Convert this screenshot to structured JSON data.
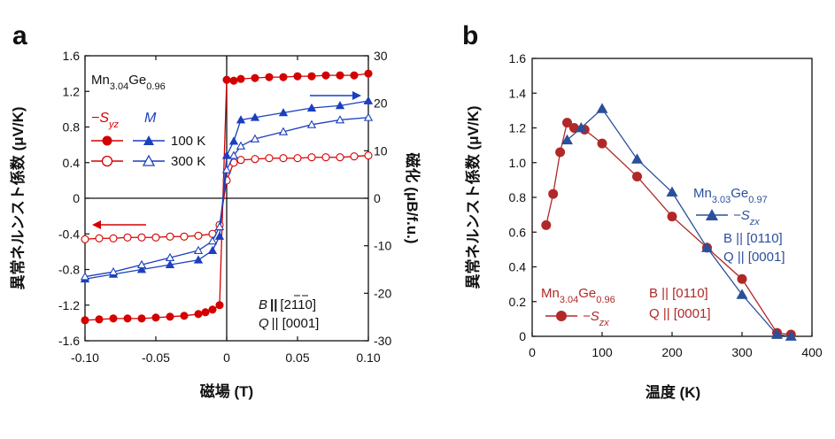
{
  "panel_a": {
    "label": "a",
    "sample": "Mn",
    "sample_sub1": "3.04",
    "sample_mid": "Ge",
    "sample_sub2": "0.96",
    "legend_syz": "−S",
    "legend_syz_sub": "yz",
    "legend_m": "M",
    "legend_100k": "100 K",
    "legend_300k": "300 K",
    "cond_b": "B",
    "cond_b_val": "|| [2̅1̅1̅0]",
    "cond_b_text": "[2110]",
    "cond_q": "Q",
    "cond_q_val": "|| [0001]",
    "ylabel_left": "異常ネルンスト係数 (μV/K)",
    "ylabel_right": "磁化 (μB/f.u.)",
    "xlabel": "磁場 (T)"
  },
  "panel_b": {
    "label": "b",
    "ylabel": "異常ネルンスト係数 (μV/K)",
    "xlabel": "温度 (K)",
    "blue_sample": "Mn",
    "blue_sub1": "3.03",
    "blue_mid": "Ge",
    "blue_sub2": "0.97",
    "blue_series": "−S",
    "blue_series_sub": "zx",
    "blue_b": "B || [0110]",
    "blue_q": "Q || [0001]",
    "red_sample": "Mn",
    "red_sub1": "3.04",
    "red_mid": "Ge",
    "red_sub2": "0.96",
    "red_series": "−S",
    "red_series_sub": "zx",
    "red_b": "B || [0110]",
    "red_q": "Q || [0001]"
  },
  "chart_data": [
    {
      "type": "line",
      "title": "a",
      "xlabel": "磁場 (T)",
      "ylabel": "異常ネルンスト係数 (μV/K)",
      "ylabel_right": "磁化 (μB/f.u.)",
      "xlim": [
        -0.1,
        0.1
      ],
      "ylim": [
        -1.6,
        1.6
      ],
      "ylim_right": [
        -30,
        30
      ],
      "xticks": [
        "-0.10",
        "-0.05",
        "0",
        "0.05",
        "0.10"
      ],
      "yticks": [
        "-1.6",
        "-1.2",
        "-0.8",
        "-0.4",
        "0",
        "0.4",
        "0.8",
        "1.2",
        "1.6"
      ],
      "yticks_right": [
        "-30",
        "-20",
        "-10",
        "0",
        "10",
        "20",
        "30"
      ],
      "series": [
        {
          "name": "-Syz 100 K",
          "axis": "left",
          "color": "#d40000",
          "marker": "circle-filled",
          "x": [
            -0.1,
            -0.09,
            -0.08,
            -0.07,
            -0.06,
            -0.05,
            -0.04,
            -0.03,
            -0.02,
            -0.015,
            -0.01,
            -0.005,
            0,
            0.005,
            0.01,
            0.02,
            0.03,
            0.04,
            0.05,
            0.06,
            0.07,
            0.08,
            0.09,
            0.1
          ],
          "y": [
            -1.37,
            -1.36,
            -1.35,
            -1.35,
            -1.35,
            -1.34,
            -1.33,
            -1.32,
            -1.3,
            -1.28,
            -1.25,
            -1.2,
            1.33,
            1.32,
            1.34,
            1.35,
            1.36,
            1.36,
            1.37,
            1.37,
            1.38,
            1.38,
            1.38,
            1.4
          ]
        },
        {
          "name": "-Syz 300 K",
          "axis": "left",
          "color": "#d40000",
          "marker": "circle-open",
          "x": [
            -0.1,
            -0.09,
            -0.08,
            -0.07,
            -0.06,
            -0.05,
            -0.04,
            -0.03,
            -0.02,
            -0.01,
            -0.005,
            0,
            0.005,
            0.01,
            0.02,
            0.03,
            0.04,
            0.05,
            0.06,
            0.07,
            0.08,
            0.09,
            0.1
          ],
          "y": [
            -0.46,
            -0.45,
            -0.45,
            -0.44,
            -0.44,
            -0.44,
            -0.43,
            -0.43,
            -0.42,
            -0.4,
            -0.3,
            0.2,
            0.4,
            0.43,
            0.44,
            0.45,
            0.45,
            0.45,
            0.46,
            0.46,
            0.46,
            0.47,
            0.48
          ]
        },
        {
          "name": "M 100 K",
          "axis": "right",
          "color": "#1c3fbf",
          "marker": "triangle-filled",
          "x": [
            -0.1,
            -0.08,
            -0.06,
            -0.04,
            -0.02,
            -0.01,
            -0.005,
            0,
            0.005,
            0.01,
            0.02,
            0.04,
            0.06,
            0.08,
            0.1
          ],
          "y": [
            -17,
            -16,
            -15,
            -14,
            -13,
            -11,
            -8,
            9,
            12,
            16.5,
            17,
            18,
            19,
            19.5,
            20.5
          ]
        },
        {
          "name": "M 300 K",
          "axis": "right",
          "color": "#1c3fbf",
          "marker": "triangle-open",
          "x": [
            -0.1,
            -0.08,
            -0.06,
            -0.04,
            -0.02,
            -0.01,
            -0.005,
            0,
            0.005,
            0.01,
            0.02,
            0.04,
            0.06,
            0.08,
            0.1
          ],
          "y": [
            -16.5,
            -15.5,
            -14,
            -12.5,
            -11,
            -9,
            -6,
            6,
            9,
            11,
            12.5,
            14,
            15.5,
            16.5,
            17
          ]
        }
      ]
    },
    {
      "type": "line",
      "title": "b",
      "xlabel": "温度 (K)",
      "ylabel": "異常ネルンスト係数 (μV/K)",
      "xlim": [
        0,
        400
      ],
      "ylim": [
        0,
        1.6
      ],
      "xticks": [
        "0",
        "100",
        "200",
        "300",
        "400"
      ],
      "yticks": [
        "0",
        "0.2",
        "0.4",
        "0.6",
        "0.8",
        "1.0",
        "1.2",
        "1.4",
        "1.6"
      ],
      "series": [
        {
          "name": "Mn3.03Ge0.97 -Szx",
          "color": "#2a4f9b",
          "marker": "triangle",
          "x": [
            50,
            70,
            100,
            150,
            200,
            250,
            300,
            350,
            370
          ],
          "y": [
            1.13,
            1.2,
            1.31,
            1.02,
            0.83,
            0.51,
            0.24,
            0.01,
            0.0
          ]
        },
        {
          "name": "Mn3.04Ge0.96 -Szx",
          "color": "#b02828",
          "marker": "circle",
          "x": [
            20,
            30,
            40,
            50,
            60,
            75,
            100,
            150,
            200,
            250,
            300,
            350,
            370
          ],
          "y": [
            0.64,
            0.82,
            1.06,
            1.23,
            1.2,
            1.19,
            1.11,
            0.92,
            0.69,
            0.51,
            0.33,
            0.02,
            0.01
          ]
        }
      ]
    }
  ]
}
